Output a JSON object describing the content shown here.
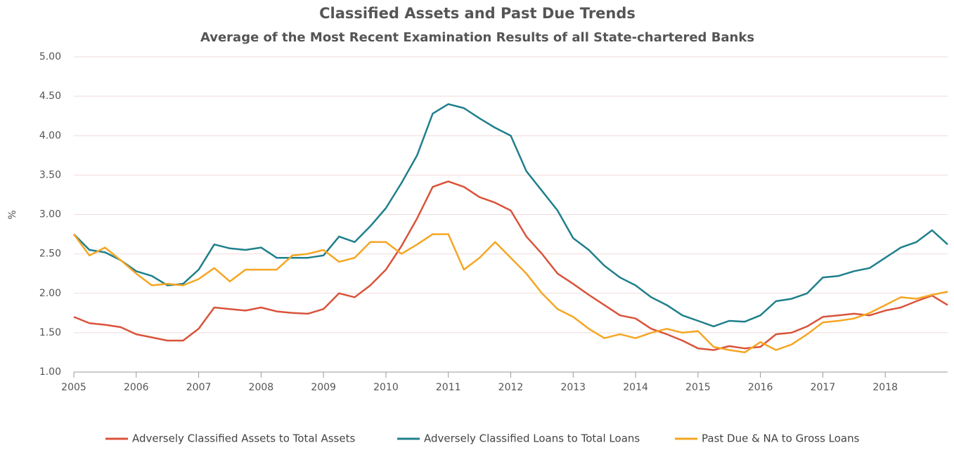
{
  "chart_data": {
    "type": "line",
    "title": "Classified Assets and Past Due Trends",
    "subtitle": "Average of the Most Recent Examination Results of all State-chartered Banks",
    "ylabel": "%",
    "x": [
      2005,
      2005.25,
      2005.5,
      2005.75,
      2006,
      2006.25,
      2006.5,
      2006.75,
      2007,
      2007.25,
      2007.5,
      2007.75,
      2008,
      2008.25,
      2008.5,
      2008.75,
      2009,
      2009.25,
      2009.5,
      2009.75,
      2010,
      2010.25,
      2010.5,
      2010.75,
      2011,
      2011.25,
      2011.5,
      2011.75,
      2012,
      2012.25,
      2012.5,
      2012.75,
      2013,
      2013.25,
      2013.5,
      2013.75,
      2014,
      2014.25,
      2014.5,
      2014.75,
      2015,
      2015.25,
      2015.5,
      2015.75,
      2016,
      2016.25,
      2016.5,
      2016.75,
      2017,
      2017.25,
      2017.5,
      2017.75,
      2018,
      2018.25,
      2018.5,
      2018.75,
      2019
    ],
    "series": [
      {
        "name": "Adversely Classified Assets to Total Assets",
        "color": "#d9533a",
        "values": [
          1.7,
          1.62,
          1.6,
          1.57,
          1.48,
          1.44,
          1.4,
          1.4,
          1.55,
          1.82,
          1.8,
          1.78,
          1.82,
          1.77,
          1.75,
          1.74,
          1.8,
          2.0,
          1.95,
          2.1,
          2.3,
          2.6,
          2.95,
          3.35,
          3.42,
          3.35,
          3.22,
          3.15,
          3.05,
          2.72,
          2.5,
          2.25,
          2.12,
          1.98,
          1.85,
          1.72,
          1.68,
          1.55,
          1.48,
          1.4,
          1.3,
          1.28,
          1.33,
          1.3,
          1.32,
          1.48,
          1.5,
          1.58,
          1.7,
          1.72,
          1.74,
          1.72,
          1.78,
          1.82,
          1.9,
          1.97,
          1.85
        ]
      },
      {
        "name": "Adversely Classified Loans to Total Loans",
        "color": "#1f7f8c",
        "values": [
          2.75,
          2.55,
          2.52,
          2.42,
          2.28,
          2.22,
          2.1,
          2.12,
          2.3,
          2.62,
          2.57,
          2.55,
          2.58,
          2.45,
          2.45,
          2.45,
          2.48,
          2.72,
          2.65,
          2.85,
          3.08,
          3.4,
          3.75,
          4.28,
          4.4,
          4.35,
          4.22,
          4.1,
          4.0,
          3.55,
          3.3,
          3.05,
          2.7,
          2.55,
          2.35,
          2.2,
          2.1,
          1.95,
          1.85,
          1.72,
          1.65,
          1.58,
          1.65,
          1.64,
          1.72,
          1.9,
          1.93,
          2.0,
          2.2,
          2.22,
          2.28,
          2.32,
          2.45,
          2.58,
          2.65,
          2.8,
          2.62
        ]
      },
      {
        "name": "Past Due & NA to Gross Loans",
        "color": "#f5a623",
        "values": [
          2.75,
          2.48,
          2.58,
          2.42,
          2.25,
          2.1,
          2.12,
          2.1,
          2.18,
          2.32,
          2.15,
          2.3,
          2.3,
          2.3,
          2.48,
          2.5,
          2.55,
          2.4,
          2.45,
          2.65,
          2.65,
          2.5,
          2.62,
          2.75,
          2.75,
          2.3,
          2.45,
          2.65,
          2.45,
          2.25,
          2.0,
          1.8,
          1.7,
          1.55,
          1.43,
          1.48,
          1.43,
          1.5,
          1.55,
          1.5,
          1.52,
          1.32,
          1.28,
          1.25,
          1.38,
          1.28,
          1.35,
          1.48,
          1.63,
          1.65,
          1.68,
          1.75,
          1.85,
          1.95,
          1.93,
          1.98,
          2.02
        ]
      }
    ],
    "xlim": [
      2005,
      2019
    ],
    "xticks": [
      2005,
      2006,
      2007,
      2008,
      2009,
      2010,
      2011,
      2012,
      2013,
      2014,
      2015,
      2016,
      2017,
      2018
    ],
    "ylim": [
      1,
      5
    ],
    "yticks": [
      {
        "value": 1,
        "label": "1.00"
      },
      {
        "value": 1.5,
        "label": "1.50"
      },
      {
        "value": 2,
        "label": "2.00"
      },
      {
        "value": 2.5,
        "label": "2.50"
      },
      {
        "value": 3,
        "label": "3.00"
      },
      {
        "value": 3.5,
        "label": "3.50"
      },
      {
        "value": 4,
        "label": "4.00"
      },
      {
        "value": 4.5,
        "label": "4.50"
      },
      {
        "value": 5,
        "label": "5.00"
      }
    ],
    "grid": true,
    "legend": "bottom"
  }
}
